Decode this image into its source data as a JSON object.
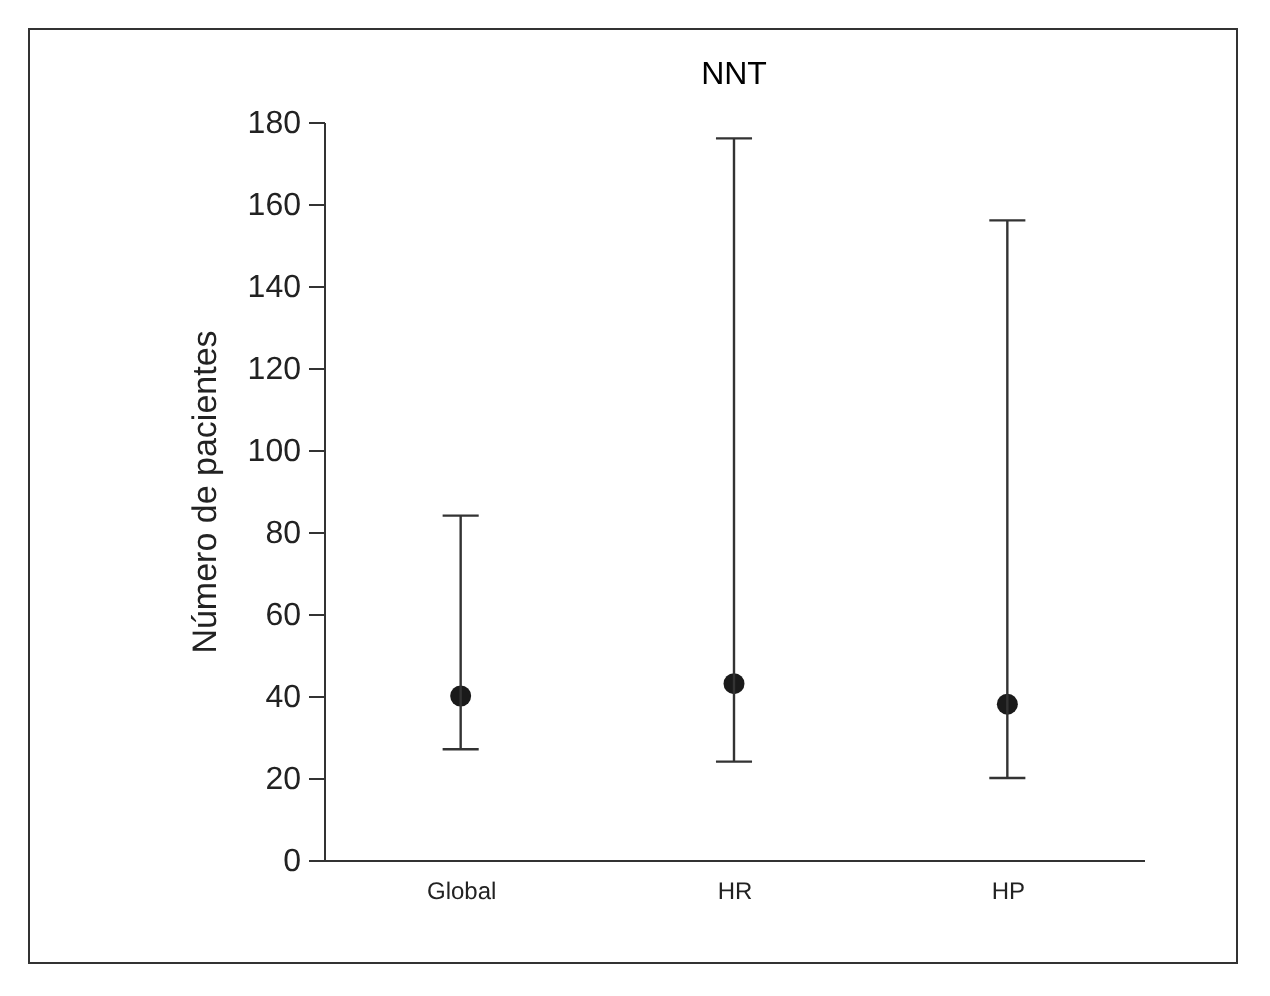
{
  "chart_data": {
    "type": "scatter",
    "title": "NNT",
    "ylabel": "Número de pacientes",
    "categories": [
      "Global",
      "HR",
      "HP"
    ],
    "values": [
      40,
      43,
      38
    ],
    "errors": [
      [
        27,
        84
      ],
      [
        24,
        176
      ],
      [
        20,
        156
      ]
    ],
    "color": "#1a1a1a",
    "marker": "circle",
    "ylim": [
      0,
      180
    ],
    "yticks": [
      0,
      20,
      40,
      60,
      80,
      100,
      120,
      140,
      160,
      180
    ]
  }
}
